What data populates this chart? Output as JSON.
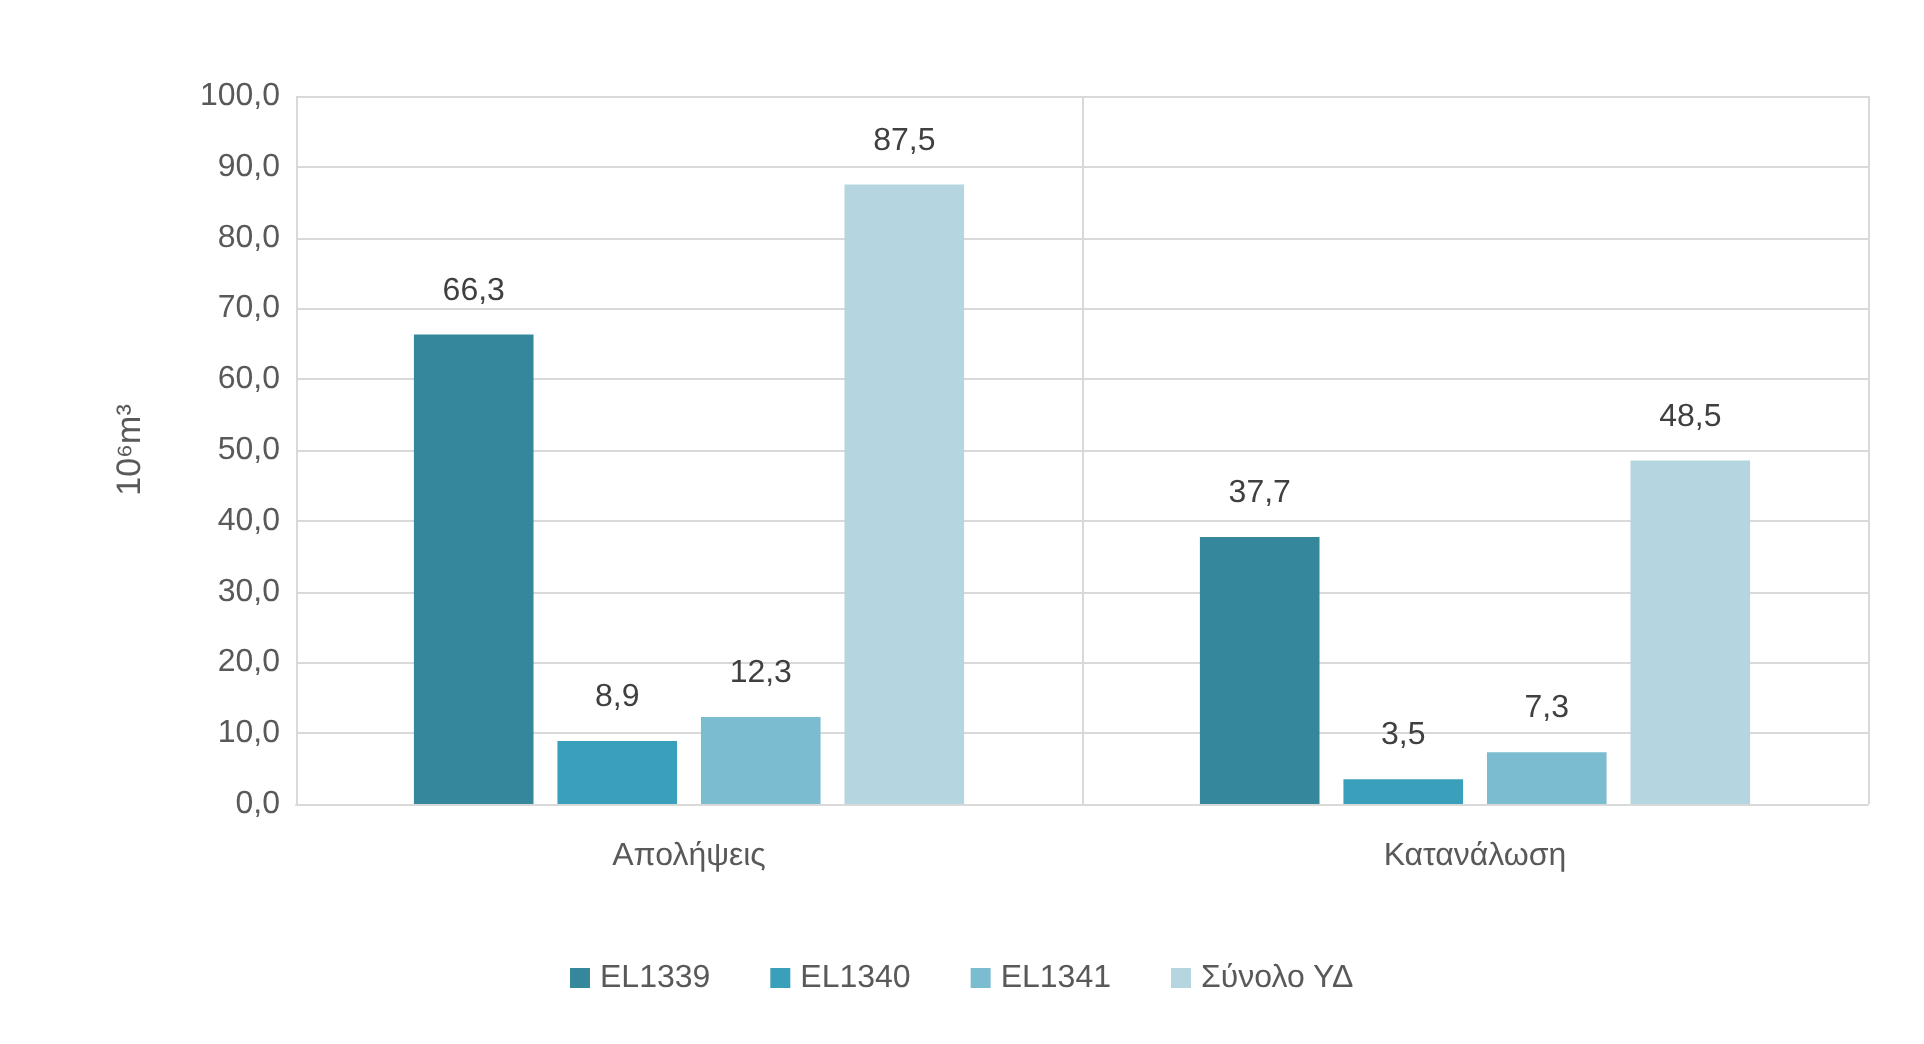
{
  "chart_data": {
    "type": "bar",
    "ylabel": "10⁶m³",
    "categories": [
      "Απολήψεις",
      "Κατανάλωση"
    ],
    "series": [
      {
        "name": "EL1339",
        "color": "#35879c",
        "values": [
          66.3,
          37.7
        ],
        "value_labels": [
          "66,3",
          "37,7"
        ]
      },
      {
        "name": "EL1340",
        "color": "#3a9fba",
        "values": [
          8.9,
          3.5
        ],
        "value_labels": [
          "8,9",
          "3,5"
        ]
      },
      {
        "name": "EL1341",
        "color": "#7bbcd1",
        "values": [
          12.3,
          7.3
        ],
        "value_labels": [
          "12,3",
          "7,3"
        ]
      },
      {
        "name": "Σύνολο ΥΔ",
        "color": "#b5d6e0",
        "values": [
          87.5,
          48.5
        ],
        "value_labels": [
          "87,5",
          "48,5"
        ]
      }
    ],
    "ylim": [
      0,
      100
    ],
    "yticks": [
      {
        "value": 0,
        "label": "0,0"
      },
      {
        "value": 10,
        "label": "10,0"
      },
      {
        "value": 20,
        "label": "20,0"
      },
      {
        "value": 30,
        "label": "30,0"
      },
      {
        "value": 40,
        "label": "40,0"
      },
      {
        "value": 50,
        "label": "50,0"
      },
      {
        "value": 60,
        "label": "60,0"
      },
      {
        "value": 70,
        "label": "70,0"
      },
      {
        "value": 80,
        "label": "80,0"
      },
      {
        "value": 90,
        "label": "90,0"
      },
      {
        "value": 100,
        "label": "100,0"
      }
    ],
    "grid": true,
    "legend": "bottom"
  }
}
